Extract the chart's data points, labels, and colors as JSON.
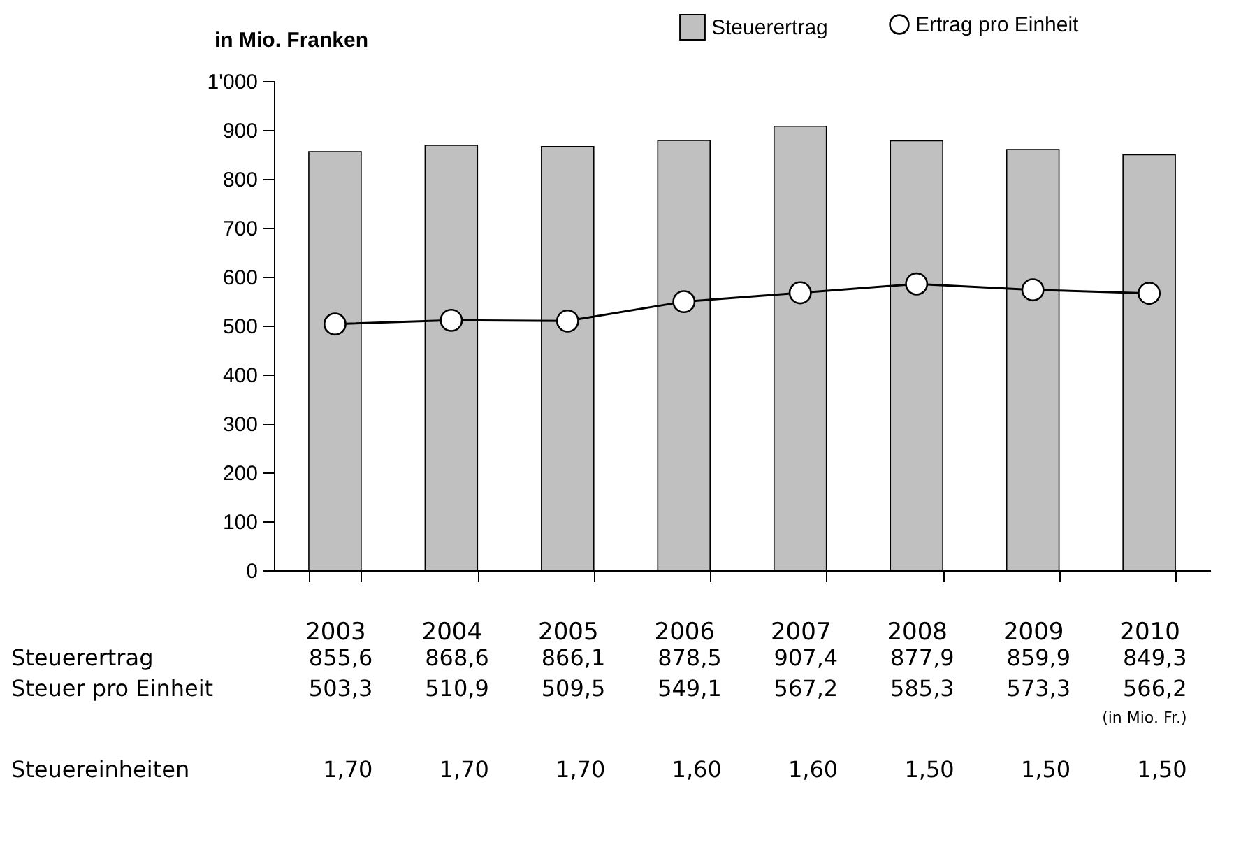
{
  "chart_data": {
    "type": "bar",
    "ylabel": "in Mio. Franken",
    "categories": [
      "2003",
      "2004",
      "2005",
      "2006",
      "2007",
      "2008",
      "2009",
      "2010"
    ],
    "series": [
      {
        "name": "Steuerertrag",
        "color": "#c0c0c0",
        "values": [
          855.6,
          868.6,
          866.1,
          878.5,
          907.4,
          877.9,
          859.9,
          849.3
        ],
        "value_labels": [
          "855,6",
          "868,6",
          "866,1",
          "878,5",
          "907,4",
          "877,9",
          "859,9",
          "849,3"
        ]
      },
      {
        "name": "Ertrag pro Einheit",
        "type": "line",
        "color": "#000000",
        "values": [
          503.3,
          510.9,
          509.5,
          549.1,
          567.2,
          585.3,
          573.3,
          566.2
        ],
        "value_labels": [
          "503,3",
          "510,9",
          "509,5",
          "549,1",
          "567,2",
          "585,3",
          "573,3",
          "566,2"
        ]
      }
    ],
    "ylim": [
      0,
      1000
    ],
    "yticks": [
      0,
      100,
      200,
      300,
      400,
      500,
      600,
      700,
      800,
      900,
      {
        "value": 1000,
        "label": "1'000"
      }
    ],
    "annotations": [
      "Steuer pro Einheit",
      "(in Mio. Fr.)",
      "Steuereinheiten",
      "1,70",
      "1,70",
      "1,70",
      "1,60",
      "1,60",
      "1,50",
      "1,50",
      "1,50"
    ],
    "marker": "circle",
    "line_style": "solid",
    "grid": false,
    "legend": "top"
  }
}
